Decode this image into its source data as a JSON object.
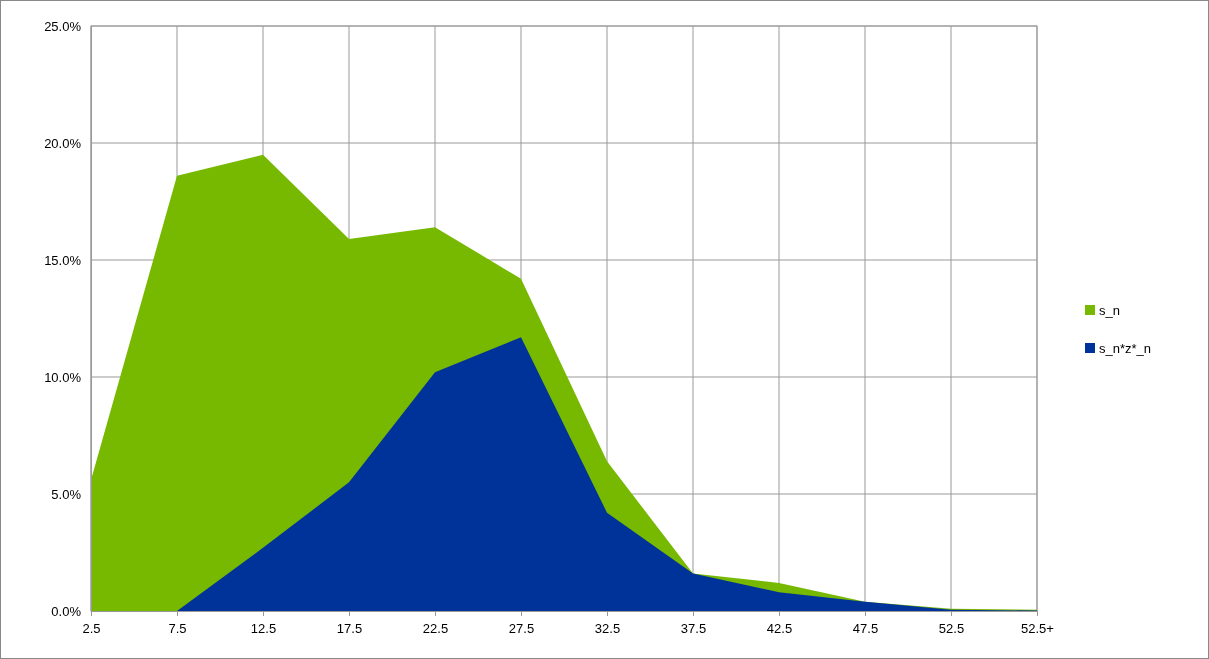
{
  "chart_data": {
    "type": "area",
    "categories": [
      "2.5",
      "7.5",
      "12.5",
      "17.5",
      "22.5",
      "27.5",
      "32.5",
      "37.5",
      "42.5",
      "47.5",
      "52.5",
      "52.5+"
    ],
    "series": [
      {
        "name": "s_n",
        "color": "#77b800",
        "values": [
          5.6,
          18.6,
          19.5,
          15.9,
          16.4,
          14.2,
          6.4,
          1.6,
          1.2,
          0.4,
          0.1,
          0.05
        ]
      },
      {
        "name": "s_n*z*_n",
        "color": "#003399",
        "values": [
          0,
          0,
          2.7,
          5.5,
          10.2,
          11.7,
          4.2,
          1.6,
          0.8,
          0.4,
          0.05,
          0.02
        ]
      }
    ],
    "ylim": [
      0,
      25
    ],
    "yticks": [
      {
        "value": 0,
        "label": "0.0%"
      },
      {
        "value": 5,
        "label": "5.0%"
      },
      {
        "value": 10,
        "label": "10.0%"
      },
      {
        "value": 15,
        "label": "15.0%"
      },
      {
        "value": 20,
        "label": "20.0%"
      },
      {
        "value": 25,
        "label": "25.0%"
      }
    ],
    "grid": true,
    "legend": "right"
  }
}
